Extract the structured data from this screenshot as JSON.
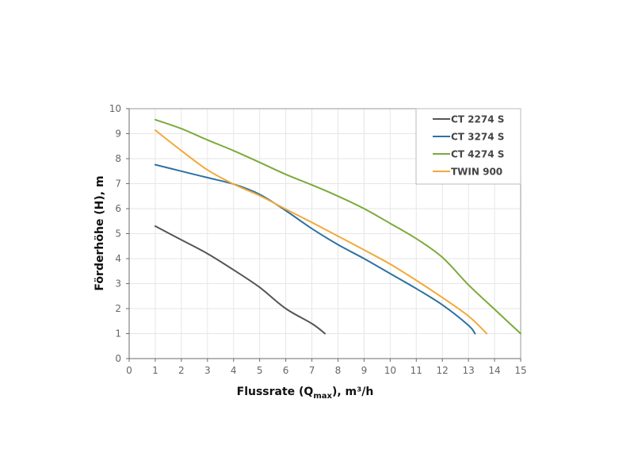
{
  "chart_data": {
    "type": "line",
    "title": "",
    "xlabel": "Flussrate (Q",
    "xlabel_sub": "max",
    "xlabel_suffix": "), m³/h",
    "ylabel": "Förderhöhe (H), m",
    "xlim": [
      0,
      15
    ],
    "ylim": [
      0,
      10
    ],
    "x_ticks": [
      0,
      1,
      2,
      3,
      4,
      5,
      6,
      7,
      8,
      9,
      10,
      11,
      12,
      13,
      14,
      15
    ],
    "y_ticks": [
      0,
      1,
      2,
      3,
      4,
      5,
      6,
      7,
      8,
      9,
      10
    ],
    "grid": true,
    "legend_position": "top-right",
    "series": [
      {
        "name": "CT 2274 S",
        "color": "#555555",
        "x": [
          1,
          2,
          3,
          4,
          5,
          6,
          7,
          7.5
        ],
        "y": [
          5.3,
          4.75,
          4.2,
          3.55,
          2.85,
          2.0,
          1.4,
          1.0
        ]
      },
      {
        "name": "CT 3274 S",
        "color": "#2e72a0",
        "x": [
          1,
          2,
          3,
          4,
          5,
          6,
          7,
          8,
          9,
          10,
          11,
          12,
          13,
          13.25
        ],
        "y": [
          7.76,
          7.5,
          7.24,
          6.98,
          6.57,
          5.92,
          5.2,
          4.56,
          4.0,
          3.4,
          2.8,
          2.15,
          1.33,
          1.0
        ]
      },
      {
        "name": "CT 4274 S",
        "color": "#7aab3a",
        "x": [
          1,
          2,
          3,
          4,
          5,
          6,
          7,
          8,
          9,
          10,
          11,
          12,
          13,
          14,
          15
        ],
        "y": [
          9.56,
          9.2,
          8.75,
          8.32,
          7.85,
          7.37,
          6.95,
          6.5,
          6.0,
          5.41,
          4.8,
          4.05,
          2.95,
          1.97,
          1.0
        ]
      },
      {
        "name": "TWIN 900",
        "color": "#f2a93b",
        "x": [
          1,
          2,
          3,
          4,
          5,
          6,
          7,
          8,
          9,
          10,
          11,
          12,
          13,
          13.7
        ],
        "y": [
          9.14,
          8.32,
          7.55,
          6.98,
          6.52,
          5.98,
          5.45,
          4.9,
          4.35,
          3.78,
          3.13,
          2.44,
          1.7,
          1.0
        ]
      }
    ]
  }
}
